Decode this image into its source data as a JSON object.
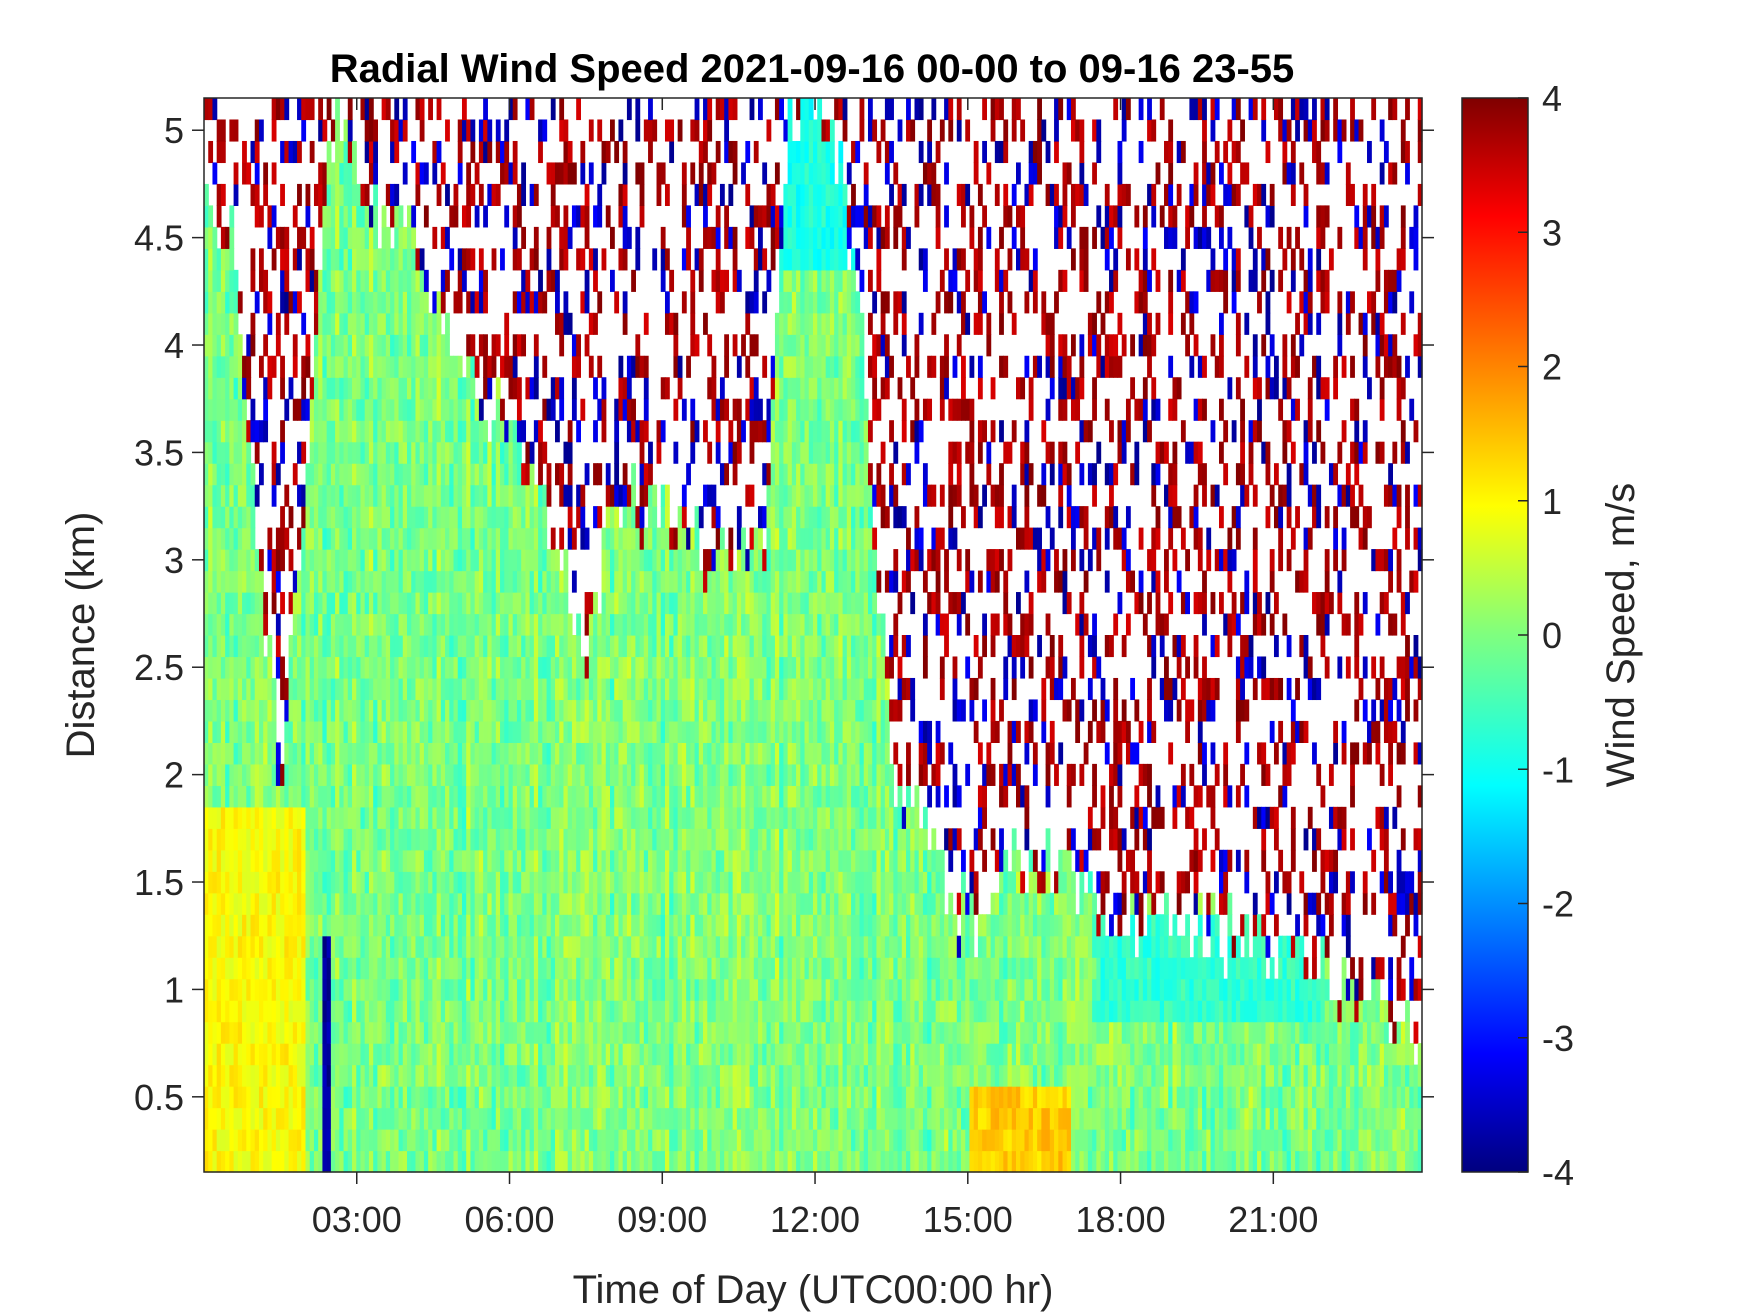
{
  "chart_data": {
    "type": "heatmap",
    "title": "Radial Wind Speed 2021-09-16 00-00 to 09-16 23-55",
    "xlabel": "Time of Day (UTC00:00 hr)",
    "ylabel": "Distance (km)",
    "colorbar_label": "Wind Speed, m/s",
    "colormap": "jet",
    "x_unit": "hours",
    "xlim": [
      0.0,
      23.92
    ],
    "ylim": [
      0.15,
      5.15
    ],
    "clim": [
      -4,
      4
    ],
    "x_ticks": [
      3,
      6,
      9,
      12,
      15,
      18,
      21
    ],
    "x_tick_labels": [
      "03:00",
      "06:00",
      "09:00",
      "12:00",
      "15:00",
      "18:00",
      "21:00"
    ],
    "y_ticks": [
      0.5,
      1,
      1.5,
      2,
      2.5,
      3,
      3.5,
      4,
      4.5,
      5
    ],
    "y_tick_labels": [
      "0.5",
      "1",
      "1.5",
      "2",
      "2.5",
      "3",
      "3.5",
      "4",
      "4.5",
      "5"
    ],
    "colorbar_ticks": [
      -4,
      -3,
      -2,
      -1,
      0,
      1,
      2,
      3,
      4
    ],
    "colorbar_tick_labels": [
      "-4",
      "-3",
      "-2",
      "-1",
      "0",
      "1",
      "2",
      "3",
      "4"
    ],
    "valid_data_top_km": [
      [
        0.0,
        4.65
      ],
      [
        0.5,
        4.6
      ],
      [
        1.0,
        3.3
      ],
      [
        1.3,
        2.5
      ],
      [
        1.5,
        2.0
      ],
      [
        2.0,
        3.3
      ],
      [
        2.3,
        4.4
      ],
      [
        2.6,
        5.15
      ],
      [
        3.0,
        4.7
      ],
      [
        4.0,
        4.5
      ],
      [
        5.0,
        4.0
      ],
      [
        6.0,
        3.6
      ],
      [
        7.0,
        3.1
      ],
      [
        7.5,
        2.5
      ],
      [
        8.0,
        3.3
      ],
      [
        9.0,
        3.2
      ],
      [
        10.0,
        3.0
      ],
      [
        11.0,
        3.0
      ],
      [
        11.5,
        5.0
      ],
      [
        12.0,
        5.15
      ],
      [
        12.5,
        4.8
      ],
      [
        13.0,
        3.8
      ],
      [
        13.5,
        2.0
      ],
      [
        14.0,
        1.8
      ],
      [
        14.5,
        1.5
      ],
      [
        15.0,
        1.3
      ],
      [
        16.0,
        1.6
      ],
      [
        17.0,
        1.5
      ],
      [
        17.5,
        1.35
      ],
      [
        19.0,
        1.35
      ],
      [
        20.5,
        1.2
      ],
      [
        21.5,
        1.1
      ],
      [
        22.5,
        1.0
      ],
      [
        23.3,
        0.85
      ],
      [
        23.92,
        0.8
      ]
    ],
    "features": [
      {
        "x_start": 0.0,
        "x_end": 2.0,
        "y_start": 0.15,
        "y_end": 1.8,
        "value": 1.0
      },
      {
        "x_start": 2.3,
        "x_end": 2.5,
        "y_start": 0.15,
        "y_end": 1.2,
        "value": -3.8
      },
      {
        "x_start": 11.3,
        "x_end": 12.8,
        "y_start": 4.4,
        "y_end": 5.15,
        "value": -0.8
      },
      {
        "x_start": 15.0,
        "x_end": 17.0,
        "y_start": 0.15,
        "y_end": 0.5,
        "value": 1.4
      },
      {
        "x_start": 17.5,
        "x_end": 22.0,
        "y_start": 0.9,
        "y_end": 1.3,
        "value": -0.6
      }
    ]
  }
}
